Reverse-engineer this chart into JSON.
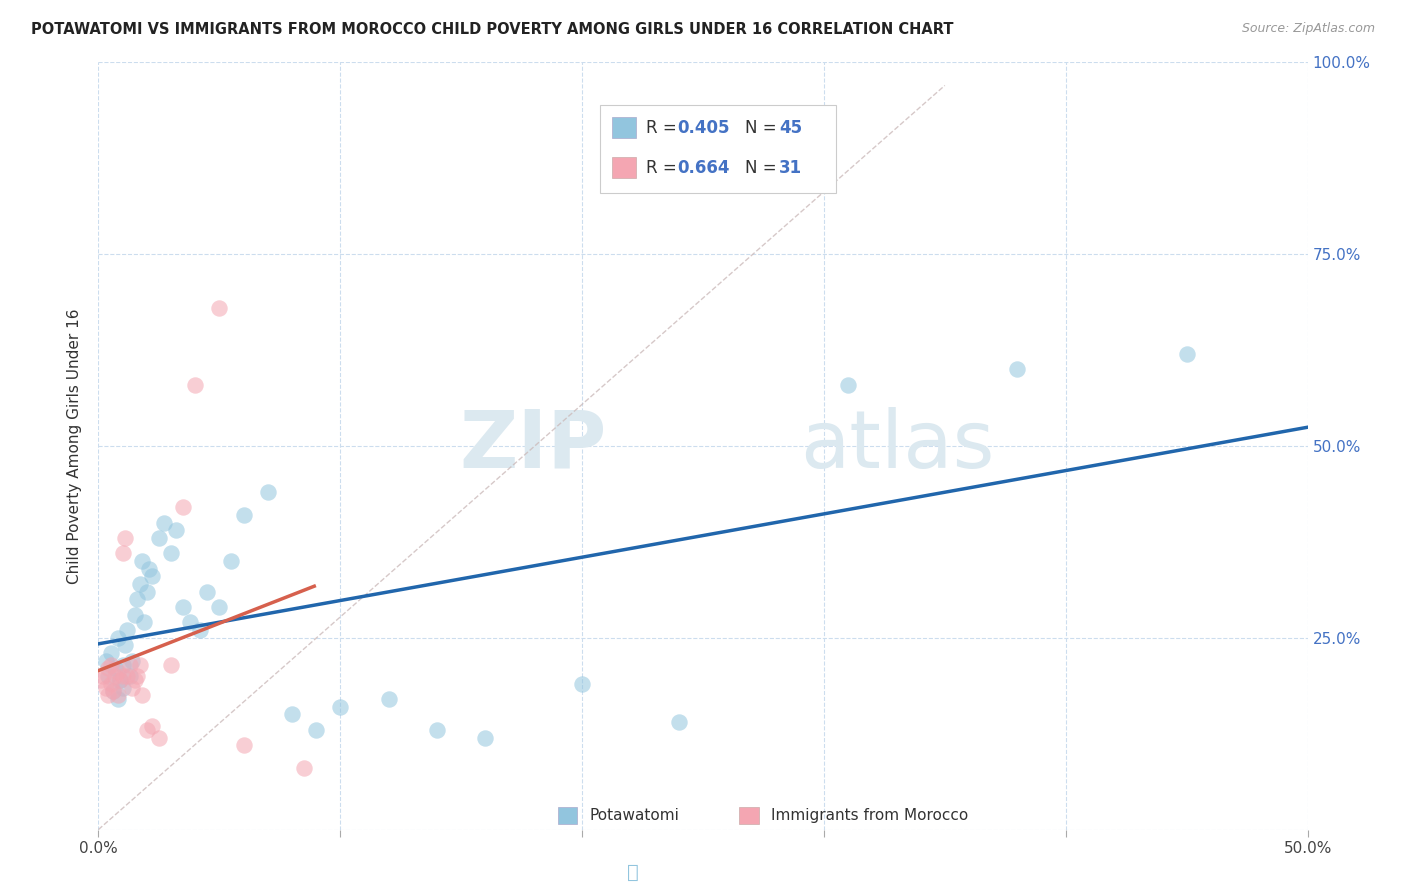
{
  "title": "POTAWATOMI VS IMMIGRANTS FROM MOROCCO CHILD POVERTY AMONG GIRLS UNDER 16 CORRELATION CHART",
  "source": "Source: ZipAtlas.com",
  "ylabel": "Child Poverty Among Girls Under 16",
  "xlim": [
    0.0,
    0.5
  ],
  "ylim": [
    0.0,
    1.0
  ],
  "blue_color": "#92c5de",
  "pink_color": "#f4a6b2",
  "blue_line_color": "#2166ac",
  "pink_line_color": "#d6604d",
  "diagonal_color": "#ccbbbb",
  "watermark_zip": "ZIP",
  "watermark_atlas": "atlas",
  "blue_label": "Potawatomi",
  "pink_label": "Immigrants from Morocco",
  "legend_r1": "0.405",
  "legend_n1": "45",
  "legend_r2": "0.664",
  "legend_n2": "31",
  "potawatomi_x": [
    0.003,
    0.004,
    0.005,
    0.006,
    0.007,
    0.008,
    0.008,
    0.009,
    0.01,
    0.01,
    0.011,
    0.012,
    0.013,
    0.014,
    0.015,
    0.016,
    0.017,
    0.018,
    0.019,
    0.02,
    0.021,
    0.022,
    0.025,
    0.027,
    0.03,
    0.032,
    0.035,
    0.038,
    0.042,
    0.045,
    0.05,
    0.055,
    0.06,
    0.07,
    0.08,
    0.09,
    0.1,
    0.12,
    0.14,
    0.16,
    0.2,
    0.24,
    0.31,
    0.38,
    0.45
  ],
  "potawatomi_y": [
    0.22,
    0.2,
    0.23,
    0.18,
    0.21,
    0.17,
    0.25,
    0.195,
    0.215,
    0.185,
    0.24,
    0.26,
    0.2,
    0.22,
    0.28,
    0.3,
    0.32,
    0.35,
    0.27,
    0.31,
    0.34,
    0.33,
    0.38,
    0.4,
    0.36,
    0.39,
    0.29,
    0.27,
    0.26,
    0.31,
    0.29,
    0.35,
    0.41,
    0.44,
    0.15,
    0.13,
    0.16,
    0.17,
    0.13,
    0.12,
    0.19,
    0.14,
    0.58,
    0.6,
    0.62
  ],
  "morocco_x": [
    0.001,
    0.002,
    0.003,
    0.004,
    0.004,
    0.005,
    0.005,
    0.006,
    0.007,
    0.008,
    0.008,
    0.009,
    0.01,
    0.01,
    0.011,
    0.012,
    0.013,
    0.014,
    0.015,
    0.016,
    0.017,
    0.018,
    0.02,
    0.022,
    0.025,
    0.03,
    0.035,
    0.04,
    0.05,
    0.06,
    0.085
  ],
  "morocco_y": [
    0.195,
    0.2,
    0.185,
    0.175,
    0.21,
    0.19,
    0.215,
    0.18,
    0.2,
    0.175,
    0.205,
    0.195,
    0.2,
    0.36,
    0.38,
    0.2,
    0.215,
    0.185,
    0.195,
    0.2,
    0.215,
    0.175,
    0.13,
    0.135,
    0.12,
    0.215,
    0.42,
    0.58,
    0.68,
    0.11,
    0.08
  ]
}
